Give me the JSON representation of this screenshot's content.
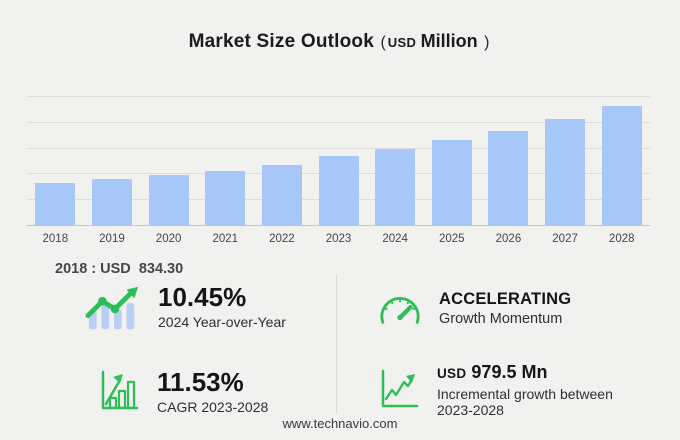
{
  "title": {
    "main": "Market Size Outlook",
    "paren_open": "(",
    "currency": "USD",
    "unit": "Million",
    "paren_close": ")"
  },
  "chart_data": {
    "type": "bar",
    "title": "Market Size Outlook (USD Million)",
    "categories": [
      "2018",
      "2019",
      "2020",
      "2021",
      "2022",
      "2023",
      "2024",
      "2025",
      "2026",
      "2027",
      "2028"
    ],
    "values": [
      834.3,
      905,
      985,
      1075,
      1185,
      1349.6,
      1490.6,
      1660,
      1845,
      2070,
      2329.1
    ],
    "unit": "USD Million",
    "xlabel": "",
    "ylabel": "USD Million",
    "ylim": [
      0,
      2500
    ],
    "gridline_step": 500,
    "grid": true,
    "legend": false,
    "bar_color": "#a7c7f9"
  },
  "annotation": "2018 : USD  834.30",
  "stats": [
    {
      "icon": "bars-trend-icon",
      "value": "10.45%",
      "label": "2024 Year-over-Year"
    },
    {
      "icon": "gauge-icon",
      "value": "ACCELERATING",
      "label": "Growth Momentum"
    },
    {
      "icon": "bar-growth-icon",
      "value": "11.53%",
      "label": "CAGR 2023-2028"
    },
    {
      "icon": "line-growth-icon",
      "value_currency": "USD",
      "value_amount": "979.5 Mn",
      "label": "Incremental growth between 2023-2028"
    }
  ],
  "footer": {
    "url": "www.technavio.com"
  },
  "colors": {
    "background": "#f1f1f0",
    "bar_blue": "#a7c7f9",
    "gridline": "#dcdcdb",
    "baseline": "#c6c6c5",
    "green": "#2ebd57",
    "icon_blue": "#b8cff3",
    "title_text": "#1b1b1b",
    "value_text": "#151515",
    "label_text": "#2f2f2f",
    "year_text": "#454545",
    "annotation_text": "#474747",
    "divider": "#d9d9d8",
    "footer_text": "#383838"
  }
}
